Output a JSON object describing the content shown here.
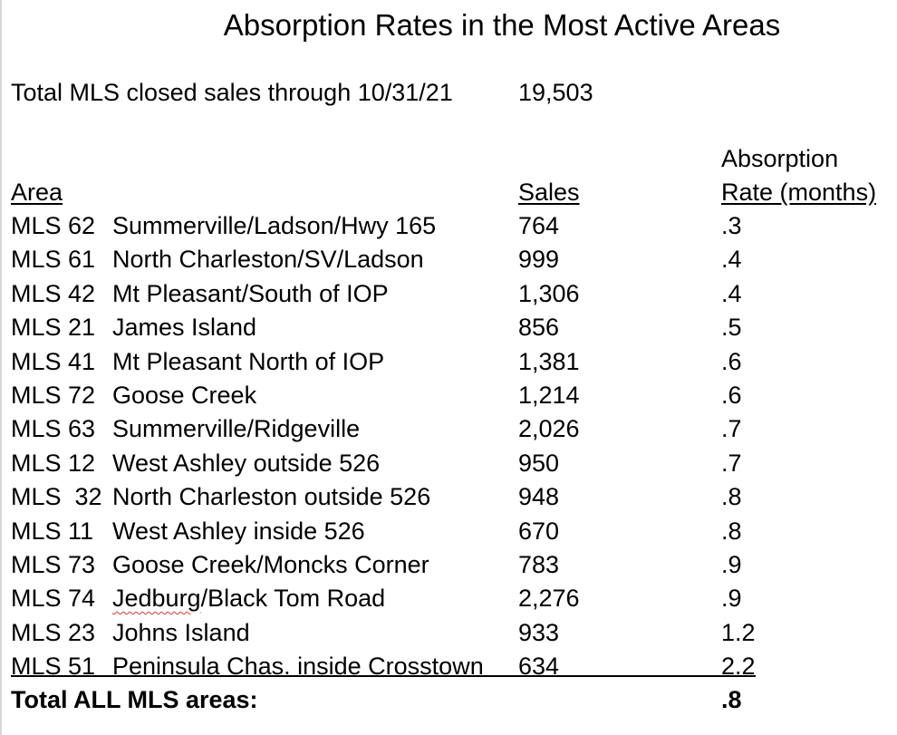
{
  "title": "Absorption Rates in the Most Active Areas",
  "total_line": {
    "label": "Total MLS closed sales through 10/31/21",
    "value": "19,503"
  },
  "headers": {
    "area": "Area",
    "sales": "Sales",
    "rate_line1": "Absorption",
    "rate_line2": "Rate (months)"
  },
  "rows": [
    {
      "code": "MLS 62",
      "name": "Summerville/Ladson/Hwy 165",
      "sales": "764",
      "rate": ".3"
    },
    {
      "code": "MLS 61",
      "name": "North Charleston/SV/Ladson",
      "sales": "999",
      "rate": ".4"
    },
    {
      "code": "MLS 42",
      "name": "Mt Pleasant/South of IOP",
      "sales": "1,306",
      "rate": ".4"
    },
    {
      "code": "MLS 21",
      "name": "James Island",
      "sales": "856",
      "rate": ".5"
    },
    {
      "code": "MLS 41",
      "name": "Mt Pleasant North of IOP",
      "sales": "1,381",
      "rate": ".6"
    },
    {
      "code": "MLS 72",
      "name": "Goose Creek",
      "sales": "1,214",
      "rate": ".6"
    },
    {
      "code": "MLS 63",
      "name": "Summerville/Ridgeville",
      "sales": "2,026",
      "rate": ".7"
    },
    {
      "code": "MLS 12",
      "name": "West Ashley outside 526",
      "sales": "950",
      "rate": ".7"
    },
    {
      "code": "MLS  32",
      "name": "North Charleston outside 526",
      "sales": "948",
      "rate": ".8"
    },
    {
      "code": "MLS 11",
      "name": "West Ashley inside 526",
      "sales": "670",
      "rate": ".8"
    },
    {
      "code": "MLS 73",
      "name": "Goose Creek/Moncks Corner",
      "sales": "783",
      "rate": ".9"
    },
    {
      "code": "MLS 74",
      "name": "Jedburg/Black Tom Road",
      "sales": "2,276",
      "rate": ".9"
    },
    {
      "code": "MLS 23",
      "name": "Johns Island",
      "sales": "933",
      "rate": "1.2"
    },
    {
      "code": "MLS 51",
      "name": "Peninsula Chas. inside Crosstown",
      "sales": "634",
      "rate": "2.2"
    }
  ],
  "footer": {
    "label": "Total ALL MLS areas:",
    "rate": ".8"
  }
}
